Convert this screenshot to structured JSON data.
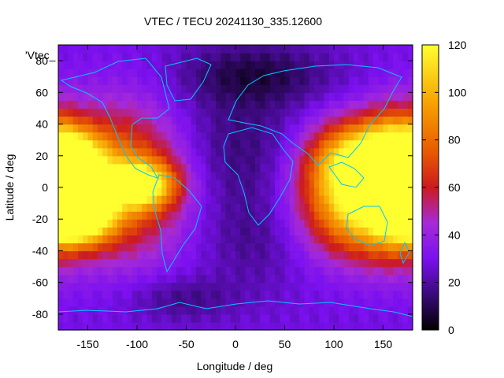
{
  "chart_data": {
    "type": "heatmap",
    "title": "VTEC / TECU 20241130_335.12600",
    "xlabel": "Longitude / deg",
    "ylabel": "Latitude / deg",
    "legend_key_label": "'Vtec_",
    "xlim": [
      -180,
      180
    ],
    "ylim": [
      -90,
      90
    ],
    "x_ticks": [
      -150,
      -100,
      -50,
      0,
      50,
      100,
      150
    ],
    "y_ticks": [
      -80,
      -60,
      -40,
      -20,
      0,
      20,
      40,
      60,
      80
    ],
    "colorbar": {
      "range": [
        0,
        120
      ],
      "ticks": [
        0,
        20,
        40,
        60,
        80,
        100,
        120
      ],
      "stops": [
        {
          "value": 0,
          "color": "#000000"
        },
        {
          "value": 15,
          "color": "#3a0a7a"
        },
        {
          "value": 30,
          "color": "#7b10f0"
        },
        {
          "value": 45,
          "color": "#a52ad8"
        },
        {
          "value": 60,
          "color": "#cc1a20"
        },
        {
          "value": 75,
          "color": "#e85a00"
        },
        {
          "value": 95,
          "color": "#f7a000"
        },
        {
          "value": 120,
          "color": "#ffff30"
        }
      ]
    },
    "grid": false,
    "legend_placement": "top-left",
    "background_vtec_tecu": 28,
    "features": [
      {
        "lon": -165,
        "lat": 12,
        "peak": 92,
        "sx": 22,
        "sy": 16
      },
      {
        "lon": -160,
        "lat": -18,
        "peak": 98,
        "sx": 24,
        "sy": 12
      },
      {
        "lon": -115,
        "lat": 5,
        "peak": 58,
        "sx": 45,
        "sy": 32
      },
      {
        "lon": -95,
        "lat": 2,
        "peak": 70,
        "sx": 24,
        "sy": 10
      },
      {
        "lon": 130,
        "lat": 18,
        "peak": 85,
        "sx": 38,
        "sy": 18
      },
      {
        "lon": 130,
        "lat": -12,
        "peak": 82,
        "sx": 42,
        "sy": 22
      },
      {
        "lon": 165,
        "lat": 5,
        "peak": 60,
        "sx": 22,
        "sy": 28
      },
      {
        "lon": 0,
        "lat": 25,
        "peak": -14,
        "sx": 55,
        "sy": 28
      },
      {
        "lon": 20,
        "lat": -32,
        "peak": -10,
        "sx": 38,
        "sy": 22
      },
      {
        "lon": 20,
        "lat": 72,
        "peak": -18,
        "sx": 55,
        "sy": 14
      },
      {
        "lon": -55,
        "lat": -70,
        "peak": -12,
        "sx": 40,
        "sy": 10
      }
    ]
  }
}
